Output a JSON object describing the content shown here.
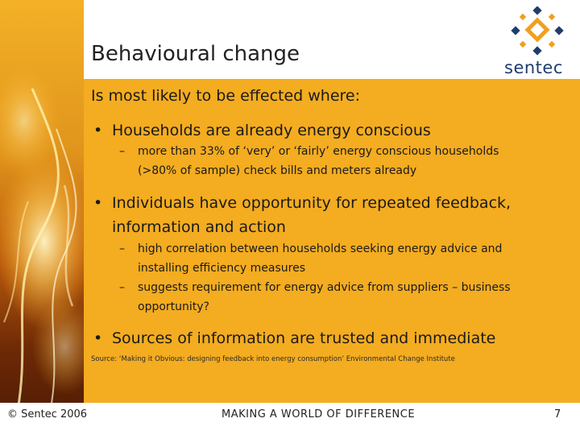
{
  "slide": {
    "title": "Behavioural change",
    "logo_text": "sentec",
    "intro": "Is most likely to be effected where:",
    "bullets": [
      {
        "text": [
          "Households are already energy conscious"
        ],
        "subs": [
          [
            "more than 33% of ‘very’ or ‘fairly’ energy conscious households",
            "(>80% of sample) check bills and meters already"
          ]
        ]
      },
      {
        "text": [
          "Individuals have opportunity for repeated feedback,",
          "information and action"
        ],
        "subs": [
          [
            "high correlation between households seeking energy advice and",
            "installing efficiency measures"
          ],
          [
            "suggests requirement for energy advice from suppliers – business",
            "opportunity?"
          ]
        ]
      },
      {
        "text": [
          "Sources of information are trusted and immediate"
        ],
        "subs": []
      }
    ],
    "source": "Source: ‘Making it Obvious: designing feedback into energy consumption’ Environmental Change Institute"
  },
  "footer": {
    "copyright": "© Sentec 2006",
    "tagline": "MAKING A WORLD OF DIFFERENCE",
    "page_number": "7"
  },
  "colors": {
    "content_bg": "#f4ac20",
    "logo_orange": "#f0a020",
    "logo_blue": "#1f3d6e"
  }
}
